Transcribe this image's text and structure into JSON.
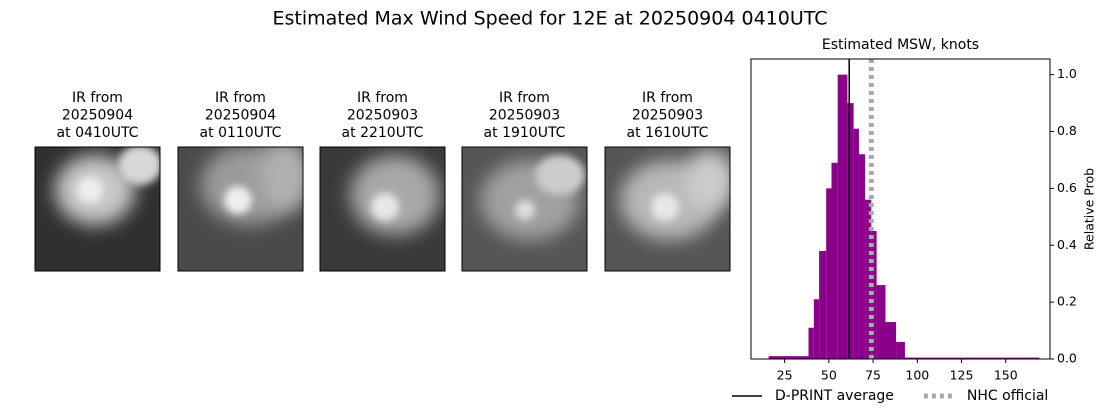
{
  "title": "Estimated Max Wind Speed for 12E at 20250904 0410UTC",
  "panels": [
    {
      "lines": [
        "IR from",
        "20250904",
        "at 0410UTC"
      ]
    },
    {
      "lines": [
        "IR from",
        "20250904",
        "at 0110UTC"
      ]
    },
    {
      "lines": [
        "IR from",
        "20250903",
        "at 2210UTC"
      ]
    },
    {
      "lines": [
        "IR from",
        "20250903",
        "at 1910UTC"
      ]
    },
    {
      "lines": [
        "IR from",
        "20250903",
        "at 1610UTC"
      ]
    }
  ],
  "chart_data": {
    "type": "histogram",
    "title": "Estimated MSW, knots",
    "y_label": "Relative Prob",
    "bins": [
      16,
      38.5,
      41.5,
      44.5,
      48.5,
      51.5,
      55,
      60.5,
      64,
      67,
      70.5,
      74,
      77,
      82,
      88,
      93,
      169
    ],
    "values": [
      0.01,
      0.11,
      0.21,
      0.38,
      0.6,
      0.69,
      1.0,
      0.9,
      0.81,
      0.72,
      0.56,
      0.45,
      0.26,
      0.13,
      0.06,
      0.005
    ],
    "color": "#8b008b",
    "xlim": [
      6,
      175
    ],
    "xticks": [
      25,
      50,
      75,
      100,
      125,
      150
    ],
    "ylim": [
      0,
      1.055
    ],
    "yticks": [
      {
        "value": 0,
        "label": "0.0"
      },
      0.2,
      0.4,
      0.6,
      0.8,
      {
        "value": 1,
        "label": "1.0"
      }
    ],
    "y_axis_side": "right",
    "lines": [
      {
        "name": "D-PRINT average",
        "value": 61.5,
        "color": "#000000",
        "style": "solid"
      },
      {
        "name": "NHC official",
        "value": 74,
        "color": "#aaaaaa",
        "style": "dotted"
      }
    ],
    "legend": "bottom"
  }
}
